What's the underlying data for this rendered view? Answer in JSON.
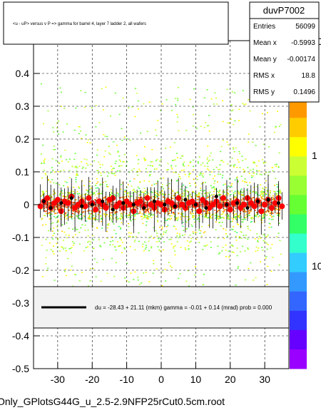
{
  "chart_data": {
    "type": "scatter",
    "title": "<u - uP>       versus   v P =>  gamma for barrel 4, layer 7 ladder 2, all wafers",
    "xlim": [
      -37,
      37
    ],
    "ylim": [
      -0.5,
      0.5
    ],
    "x_ticks": [
      "-30",
      "-20",
      "-10",
      "0",
      "10",
      "20",
      "30"
    ],
    "y_ticks": [
      "-0.5",
      "-0.4",
      "-0.3",
      "-0.2",
      "-0.1",
      "0",
      "0.1",
      "0.2",
      "0.3",
      "0.4"
    ],
    "colorbar_ticks": [
      "10",
      "1",
      "10"
    ],
    "grid": true,
    "stats": {
      "name": "duvP7002",
      "rows": [
        {
          "label": "Entries",
          "value": "56099"
        },
        {
          "label": "Mean x",
          "value": "-0.5993"
        },
        {
          "label": "Mean y",
          "value": "-0.00174"
        },
        {
          "label": "RMS x",
          "value": "18.8"
        },
        {
          "label": "RMS y",
          "value": "0.1496"
        }
      ]
    },
    "fit_legend": "du =  -28.43 +  21.11 (mkm) gamma =   -0.01 +   0.14 (mrad) prob = 0.000",
    "series": [
      {
        "marker": "red-circle",
        "x": [
          -35,
          -34,
          -33,
          -32,
          -31,
          -30,
          -29,
          -28,
          -27,
          -26,
          -25,
          -24,
          -23,
          -22,
          -21,
          -20,
          -19,
          -18,
          -17,
          -16,
          -15,
          -14,
          -13,
          -12,
          -11,
          -10,
          -9,
          -8,
          -7,
          -6,
          -5,
          -4,
          -3,
          -2,
          -1,
          0,
          1,
          2,
          3,
          4,
          5,
          6,
          7,
          8,
          9,
          10,
          11,
          12,
          13,
          14,
          15,
          16,
          17,
          18,
          19,
          20,
          21,
          22,
          23,
          24,
          25,
          26,
          27,
          28,
          29,
          30,
          31,
          32,
          33,
          34,
          35
        ],
        "y": [
          -0.005,
          0.01,
          0.02,
          -0.01,
          0.005,
          0.015,
          -0.02,
          0.01,
          0.005,
          0.025,
          -0.01,
          0.0,
          0.01,
          -0.005,
          0.02,
          0.005,
          -0.015,
          0.01,
          0.0,
          -0.01,
          0.015,
          0.02,
          -0.005,
          0.005,
          -0.01,
          0.01,
          0.0,
          -0.02,
          0.005,
          0.01,
          -0.005,
          0.02,
          0.0,
          -0.01,
          0.005,
          0.0,
          -0.015,
          0.01,
          0.005,
          -0.005,
          0.02,
          0.0,
          -0.01,
          0.005,
          0.01,
          0.0,
          -0.02,
          0.015,
          0.005,
          -0.01,
          0.0,
          0.01,
          -0.005,
          0.02,
          0.0,
          -0.015,
          0.005,
          0.01,
          -0.01,
          0.0,
          0.02,
          0.005,
          -0.005,
          0.01,
          -0.02,
          0.0,
          0.015,
          -0.01,
          0.005,
          0.02,
          -0.005
        ]
      },
      {
        "marker": "black-dot",
        "x": [
          -34,
          -32,
          -29,
          -26,
          -23,
          -20,
          -17,
          -14,
          -11,
          -8,
          -5,
          -2,
          1,
          4,
          7,
          10,
          13,
          16,
          19,
          22,
          25,
          28,
          31,
          34
        ],
        "y": [
          0.01,
          -0.01,
          0.005,
          0.02,
          -0.005,
          0.0,
          0.01,
          -0.015,
          0.005,
          0.0,
          -0.01,
          0.01,
          0.0,
          -0.005,
          0.015,
          0.0,
          -0.01,
          0.025,
          0.0,
          0.005,
          -0.01,
          0.01,
          0.015,
          0.005
        ]
      }
    ]
  },
  "footer": "Only_GPlotsG44G_u_2.5-2.9NFP25rCut0.5cm.root"
}
